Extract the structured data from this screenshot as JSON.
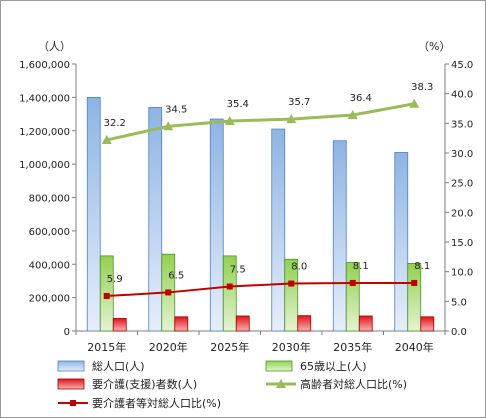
{
  "chart_data": {
    "type": "bar",
    "categories": [
      "2015年",
      "2020年",
      "2025年",
      "2030年",
      "2035年",
      "2040年"
    ],
    "left_axis": {
      "unit": "（人）",
      "ylim": [
        0,
        1600000
      ],
      "ticks": [
        "0",
        "200,000",
        "400,000",
        "600,000",
        "800,000",
        "1,000,000",
        "1,200,000",
        "1,400,000",
        "1,600,000"
      ]
    },
    "right_axis": {
      "unit": "（%）",
      "ylim": [
        0,
        45
      ],
      "ticks": [
        "0.0",
        "5.0",
        "10.0",
        "15.0",
        "20.0",
        "25.0",
        "30.0",
        "35.0",
        "40.0",
        "45.0"
      ]
    },
    "series": [
      {
        "name": "総人口(人)",
        "type": "bar",
        "axis": "left",
        "color": "#8eb4e3",
        "values": [
          1400000,
          1340000,
          1270000,
          1210000,
          1140000,
          1070000
        ]
      },
      {
        "name": "65歳以上(人)",
        "type": "bar",
        "axis": "left",
        "color": "#92d050",
        "values": [
          450000,
          460000,
          450000,
          430000,
          410000,
          405000
        ]
      },
      {
        "name": "要介護(支援)者数(人)",
        "type": "bar",
        "axis": "left",
        "color": "#e2141b",
        "values": [
          75000,
          85000,
          90000,
          92000,
          90000,
          85000
        ]
      },
      {
        "name": "高齢者対総人口比(%)",
        "type": "line",
        "axis": "right",
        "color": "#9bbb59",
        "marker": "triangle",
        "values": [
          32.2,
          34.5,
          35.4,
          35.7,
          36.4,
          38.3
        ],
        "labels": [
          "32.2",
          "34.5",
          "35.4",
          "35.7",
          "36.4",
          "38.3"
        ]
      },
      {
        "name": "要介護者等対総人口比(%)",
        "type": "line",
        "axis": "right",
        "color": "#c00000",
        "marker": "square",
        "values": [
          5.9,
          6.5,
          7.5,
          8.0,
          8.1,
          8.1
        ],
        "labels": [
          "5.9",
          "6.5",
          "7.5",
          "8.0",
          "8.1",
          "8.1"
        ]
      }
    ],
    "legend_position": "bottom",
    "grid": false
  }
}
